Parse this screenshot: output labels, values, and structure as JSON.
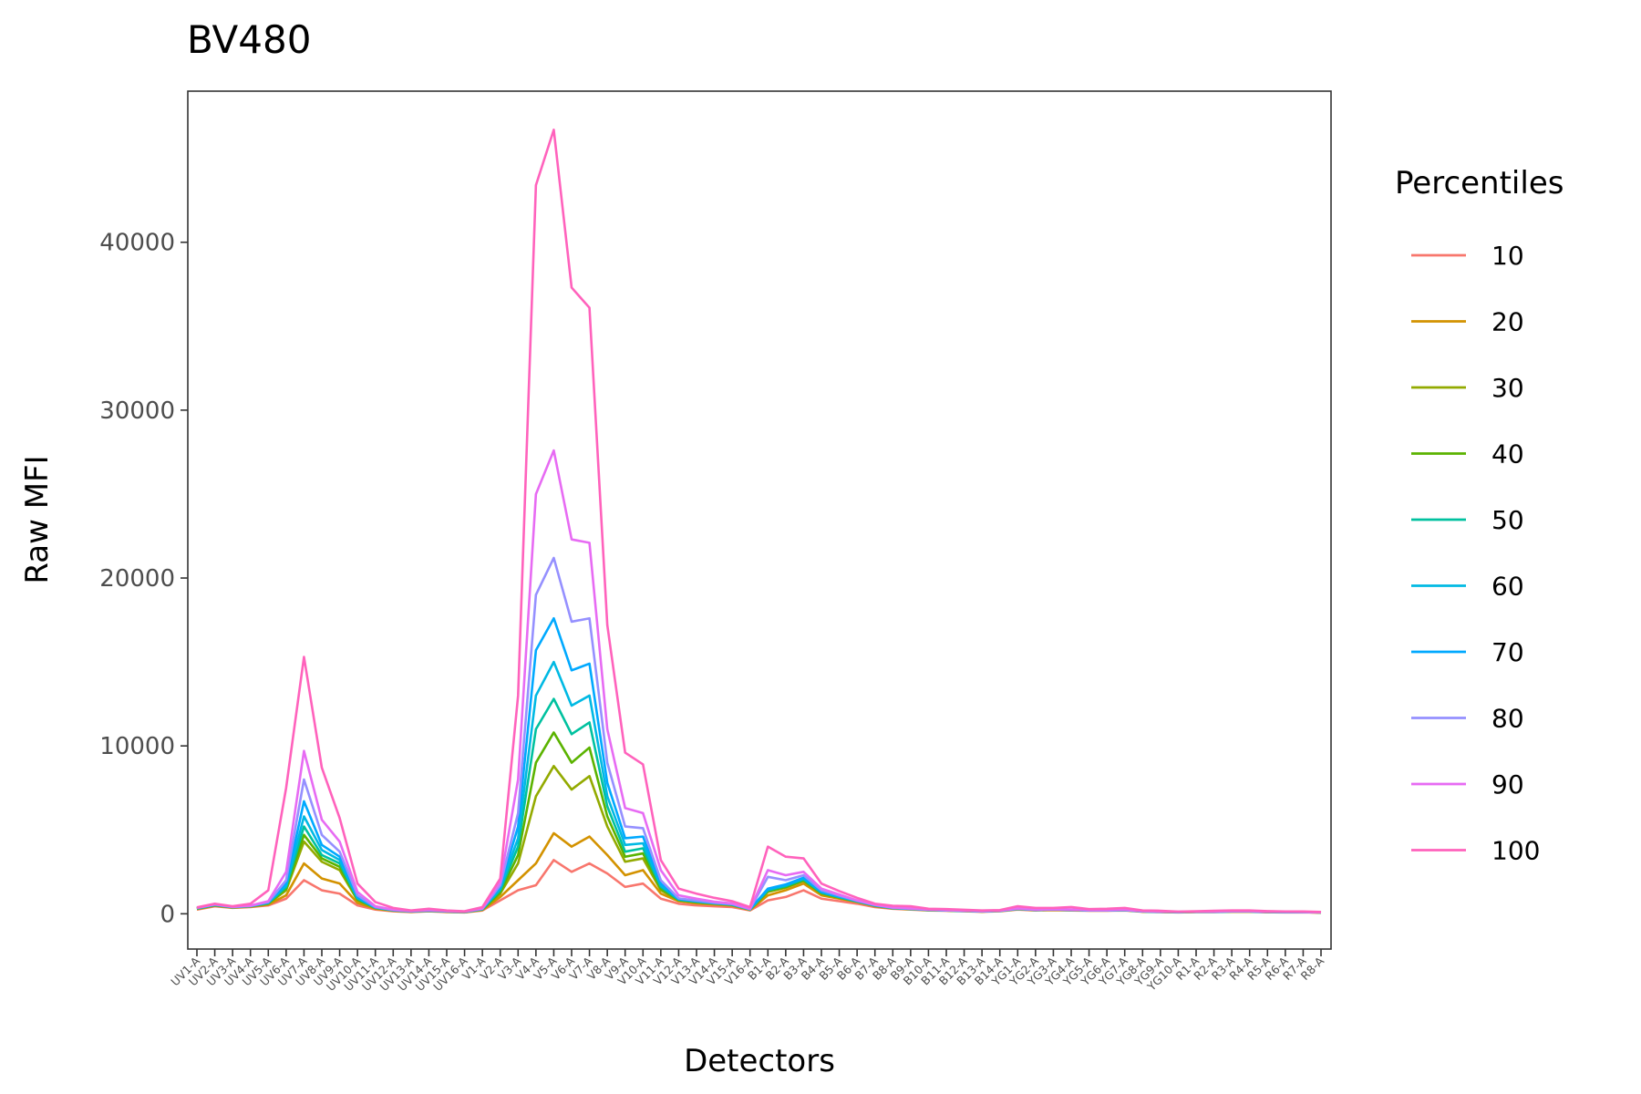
{
  "chart_data": {
    "type": "line",
    "title": "BV480",
    "xlabel": "Detectors",
    "ylabel": "Raw MFI",
    "ylim": [
      -2100,
      49000
    ],
    "yticks": [
      0,
      10000,
      20000,
      30000,
      40000
    ],
    "ytick_labels": [
      "0",
      "10000",
      "20000",
      "30000",
      "40000"
    ],
    "grid": false,
    "legend": {
      "title": "Percentiles",
      "position": "right"
    },
    "categories": [
      "UV1-A",
      "UV2-A",
      "UV3-A",
      "UV4-A",
      "UV5-A",
      "UV6-A",
      "UV7-A",
      "UV8-A",
      "UV9-A",
      "UV10-A",
      "UV11-A",
      "UV12-A",
      "UV13-A",
      "UV14-A",
      "UV15-A",
      "UV16-A",
      "V1-A",
      "V2-A",
      "V3-A",
      "V4-A",
      "V5-A",
      "V6-A",
      "V7-A",
      "V8-A",
      "V9-A",
      "V10-A",
      "V11-A",
      "V12-A",
      "V13-A",
      "V14-A",
      "V15-A",
      "V16-A",
      "B1-A",
      "B2-A",
      "B3-A",
      "B4-A",
      "B5-A",
      "B6-A",
      "B7-A",
      "B8-A",
      "B9-A",
      "B10-A",
      "B11-A",
      "B12-A",
      "B13-A",
      "B14-A",
      "YG1-A",
      "YG2-A",
      "YG3-A",
      "YG4-A",
      "YG5-A",
      "YG6-A",
      "YG7-A",
      "YG8-A",
      "YG9-A",
      "YG10-A",
      "R1-A",
      "R2-A",
      "R3-A",
      "R4-A",
      "R5-A",
      "R6-A",
      "R7-A",
      "R8-A"
    ],
    "series": [
      {
        "name": "10",
        "color": "#F8766D",
        "values": [
          250,
          450,
          350,
          400,
          500,
          900,
          2000,
          1400,
          1200,
          500,
          250,
          150,
          100,
          150,
          100,
          80,
          200,
          800,
          1400,
          1700,
          3200,
          2500,
          3000,
          2400,
          1600,
          1800,
          900,
          600,
          500,
          450,
          400,
          200,
          800,
          1000,
          1400,
          900,
          750,
          600,
          400,
          300,
          250,
          200,
          180,
          150,
          120,
          150,
          250,
          200,
          220,
          200,
          180,
          180,
          200,
          120,
          100,
          80,
          100,
          100,
          120,
          120,
          90,
          80,
          90,
          70
        ]
      },
      {
        "name": "20",
        "color": "#D39200",
        "values": [
          280,
          480,
          370,
          420,
          550,
          1100,
          3000,
          2100,
          1800,
          650,
          300,
          180,
          120,
          170,
          120,
          90,
          230,
          1000,
          2000,
          3000,
          4800,
          4000,
          4600,
          3500,
          2300,
          2600,
          1200,
          750,
          620,
          550,
          480,
          230,
          1100,
          1400,
          1800,
          1100,
          900,
          700,
          450,
          320,
          270,
          210,
          190,
          160,
          130,
          160,
          270,
          220,
          240,
          220,
          190,
          190,
          210,
          130,
          110,
          90,
          110,
          110,
          130,
          130,
          100,
          90,
          95,
          75
        ]
      },
      {
        "name": "30",
        "color": "#93AA00",
        "values": [
          300,
          500,
          380,
          440,
          600,
          1400,
          4300,
          3100,
          2600,
          800,
          340,
          200,
          130,
          180,
          130,
          100,
          250,
          1200,
          3000,
          7000,
          8800,
          7400,
          8200,
          5200,
          3100,
          3300,
          1400,
          800,
          680,
          600,
          520,
          250,
          1300,
          1550,
          1950,
          1200,
          950,
          720,
          470,
          330,
          280,
          220,
          195,
          170,
          135,
          170,
          280,
          230,
          250,
          230,
          195,
          195,
          215,
          135,
          115,
          95,
          115,
          115,
          135,
          135,
          105,
          95,
          98,
          78
        ]
      },
      {
        "name": "40",
        "color": "#5BB300",
        "values": [
          310,
          510,
          390,
          450,
          620,
          1500,
          4700,
          3300,
          2800,
          850,
          350,
          205,
          135,
          185,
          135,
          105,
          260,
          1300,
          3500,
          9000,
          10800,
          9000,
          9900,
          5800,
          3400,
          3600,
          1500,
          820,
          700,
          610,
          530,
          255,
          1350,
          1600,
          2000,
          1230,
          970,
          730,
          480,
          335,
          285,
          225,
          198,
          172,
          137,
          172,
          285,
          233,
          253,
          233,
          198,
          198,
          218,
          137,
          117,
          97,
          117,
          117,
          137,
          137,
          107,
          97,
          100,
          80
        ]
      },
      {
        "name": "50",
        "color": "#00C19F",
        "values": [
          320,
          520,
          395,
          455,
          640,
          1600,
          5200,
          3500,
          3000,
          900,
          360,
          210,
          140,
          190,
          140,
          110,
          270,
          1400,
          4000,
          11000,
          12800,
          10700,
          11400,
          6400,
          3700,
          3900,
          1600,
          840,
          720,
          620,
          540,
          260,
          1400,
          1650,
          2050,
          1260,
          990,
          740,
          490,
          340,
          290,
          230,
          200,
          175,
          140,
          175,
          290,
          235,
          255,
          235,
          200,
          200,
          220,
          140,
          120,
          100,
          120,
          120,
          140,
          140,
          110,
          100,
          102,
          82
        ]
      },
      {
        "name": "60",
        "color": "#00B9E3",
        "values": [
          330,
          530,
          400,
          460,
          660,
          1700,
          5800,
          3800,
          3200,
          950,
          370,
          215,
          145,
          195,
          145,
          115,
          280,
          1500,
          4500,
          13000,
          15000,
          12400,
          13000,
          7000,
          4100,
          4200,
          1700,
          860,
          740,
          630,
          550,
          265,
          1450,
          1700,
          2100,
          1290,
          1010,
          750,
          500,
          345,
          295,
          235,
          203,
          178,
          143,
          178,
          295,
          238,
          258,
          238,
          203,
          203,
          223,
          143,
          123,
          103,
          123,
          123,
          143,
          143,
          113,
          103,
          104,
          84
        ]
      },
      {
        "name": "70",
        "color": "#00A9FF",
        "values": [
          340,
          540,
          405,
          465,
          680,
          1800,
          6700,
          4100,
          3400,
          1000,
          380,
          220,
          150,
          200,
          150,
          120,
          290,
          1600,
          5200,
          15700,
          17600,
          14500,
          14900,
          7800,
          4500,
          4600,
          1800,
          880,
          760,
          640,
          560,
          270,
          1500,
          1750,
          2150,
          1320,
          1030,
          760,
          510,
          350,
          300,
          240,
          206,
          181,
          146,
          181,
          300,
          241,
          261,
          241,
          206,
          206,
          226,
          146,
          126,
          106,
          126,
          126,
          146,
          146,
          116,
          106,
          106,
          86
        ]
      },
      {
        "name": "80",
        "color": "#9590FF",
        "values": [
          350,
          550,
          410,
          470,
          700,
          2000,
          8000,
          4700,
          3700,
          1100,
          400,
          230,
          155,
          210,
          155,
          125,
          300,
          1700,
          6000,
          19000,
          21200,
          17400,
          17600,
          9000,
          5200,
          5100,
          2000,
          920,
          790,
          660,
          580,
          280,
          2200,
          2000,
          2300,
          1400,
          1080,
          780,
          520,
          360,
          305,
          245,
          210,
          185,
          150,
          185,
          305,
          245,
          265,
          245,
          210,
          210,
          230,
          150,
          130,
          110,
          130,
          130,
          150,
          150,
          120,
          110,
          108,
          88
        ]
      },
      {
        "name": "90",
        "color": "#E76BF3",
        "values": [
          360,
          570,
          420,
          490,
          750,
          2500,
          9700,
          5600,
          4300,
          1300,
          450,
          250,
          165,
          230,
          165,
          135,
          320,
          1900,
          8000,
          25000,
          27600,
          22300,
          22100,
          11000,
          6300,
          6000,
          2600,
          1100,
          900,
          720,
          620,
          290,
          2600,
          2300,
          2500,
          1500,
          1150,
          800,
          540,
          380,
          320,
          255,
          220,
          195,
          160,
          195,
          320,
          255,
          275,
          255,
          220,
          220,
          240,
          160,
          140,
          120,
          140,
          140,
          160,
          160,
          130,
          120,
          112,
          92
        ]
      },
      {
        "name": "100",
        "color": "#FF62BC",
        "values": [
          380,
          600,
          450,
          600,
          1400,
          7500,
          15300,
          8700,
          5700,
          1800,
          700,
          350,
          200,
          300,
          200,
          150,
          400,
          2100,
          13000,
          43400,
          46700,
          37300,
          36100,
          17200,
          9600,
          8900,
          3200,
          1500,
          1200,
          950,
          750,
          400,
          4000,
          3400,
          3300,
          1800,
          1350,
          950,
          600,
          480,
          450,
          300,
          280,
          240,
          200,
          220,
          450,
          350,
          350,
          400,
          280,
          300,
          350,
          200,
          180,
          130,
          150,
          180,
          200,
          200,
          160,
          140,
          140,
          110
        ]
      }
    ]
  }
}
